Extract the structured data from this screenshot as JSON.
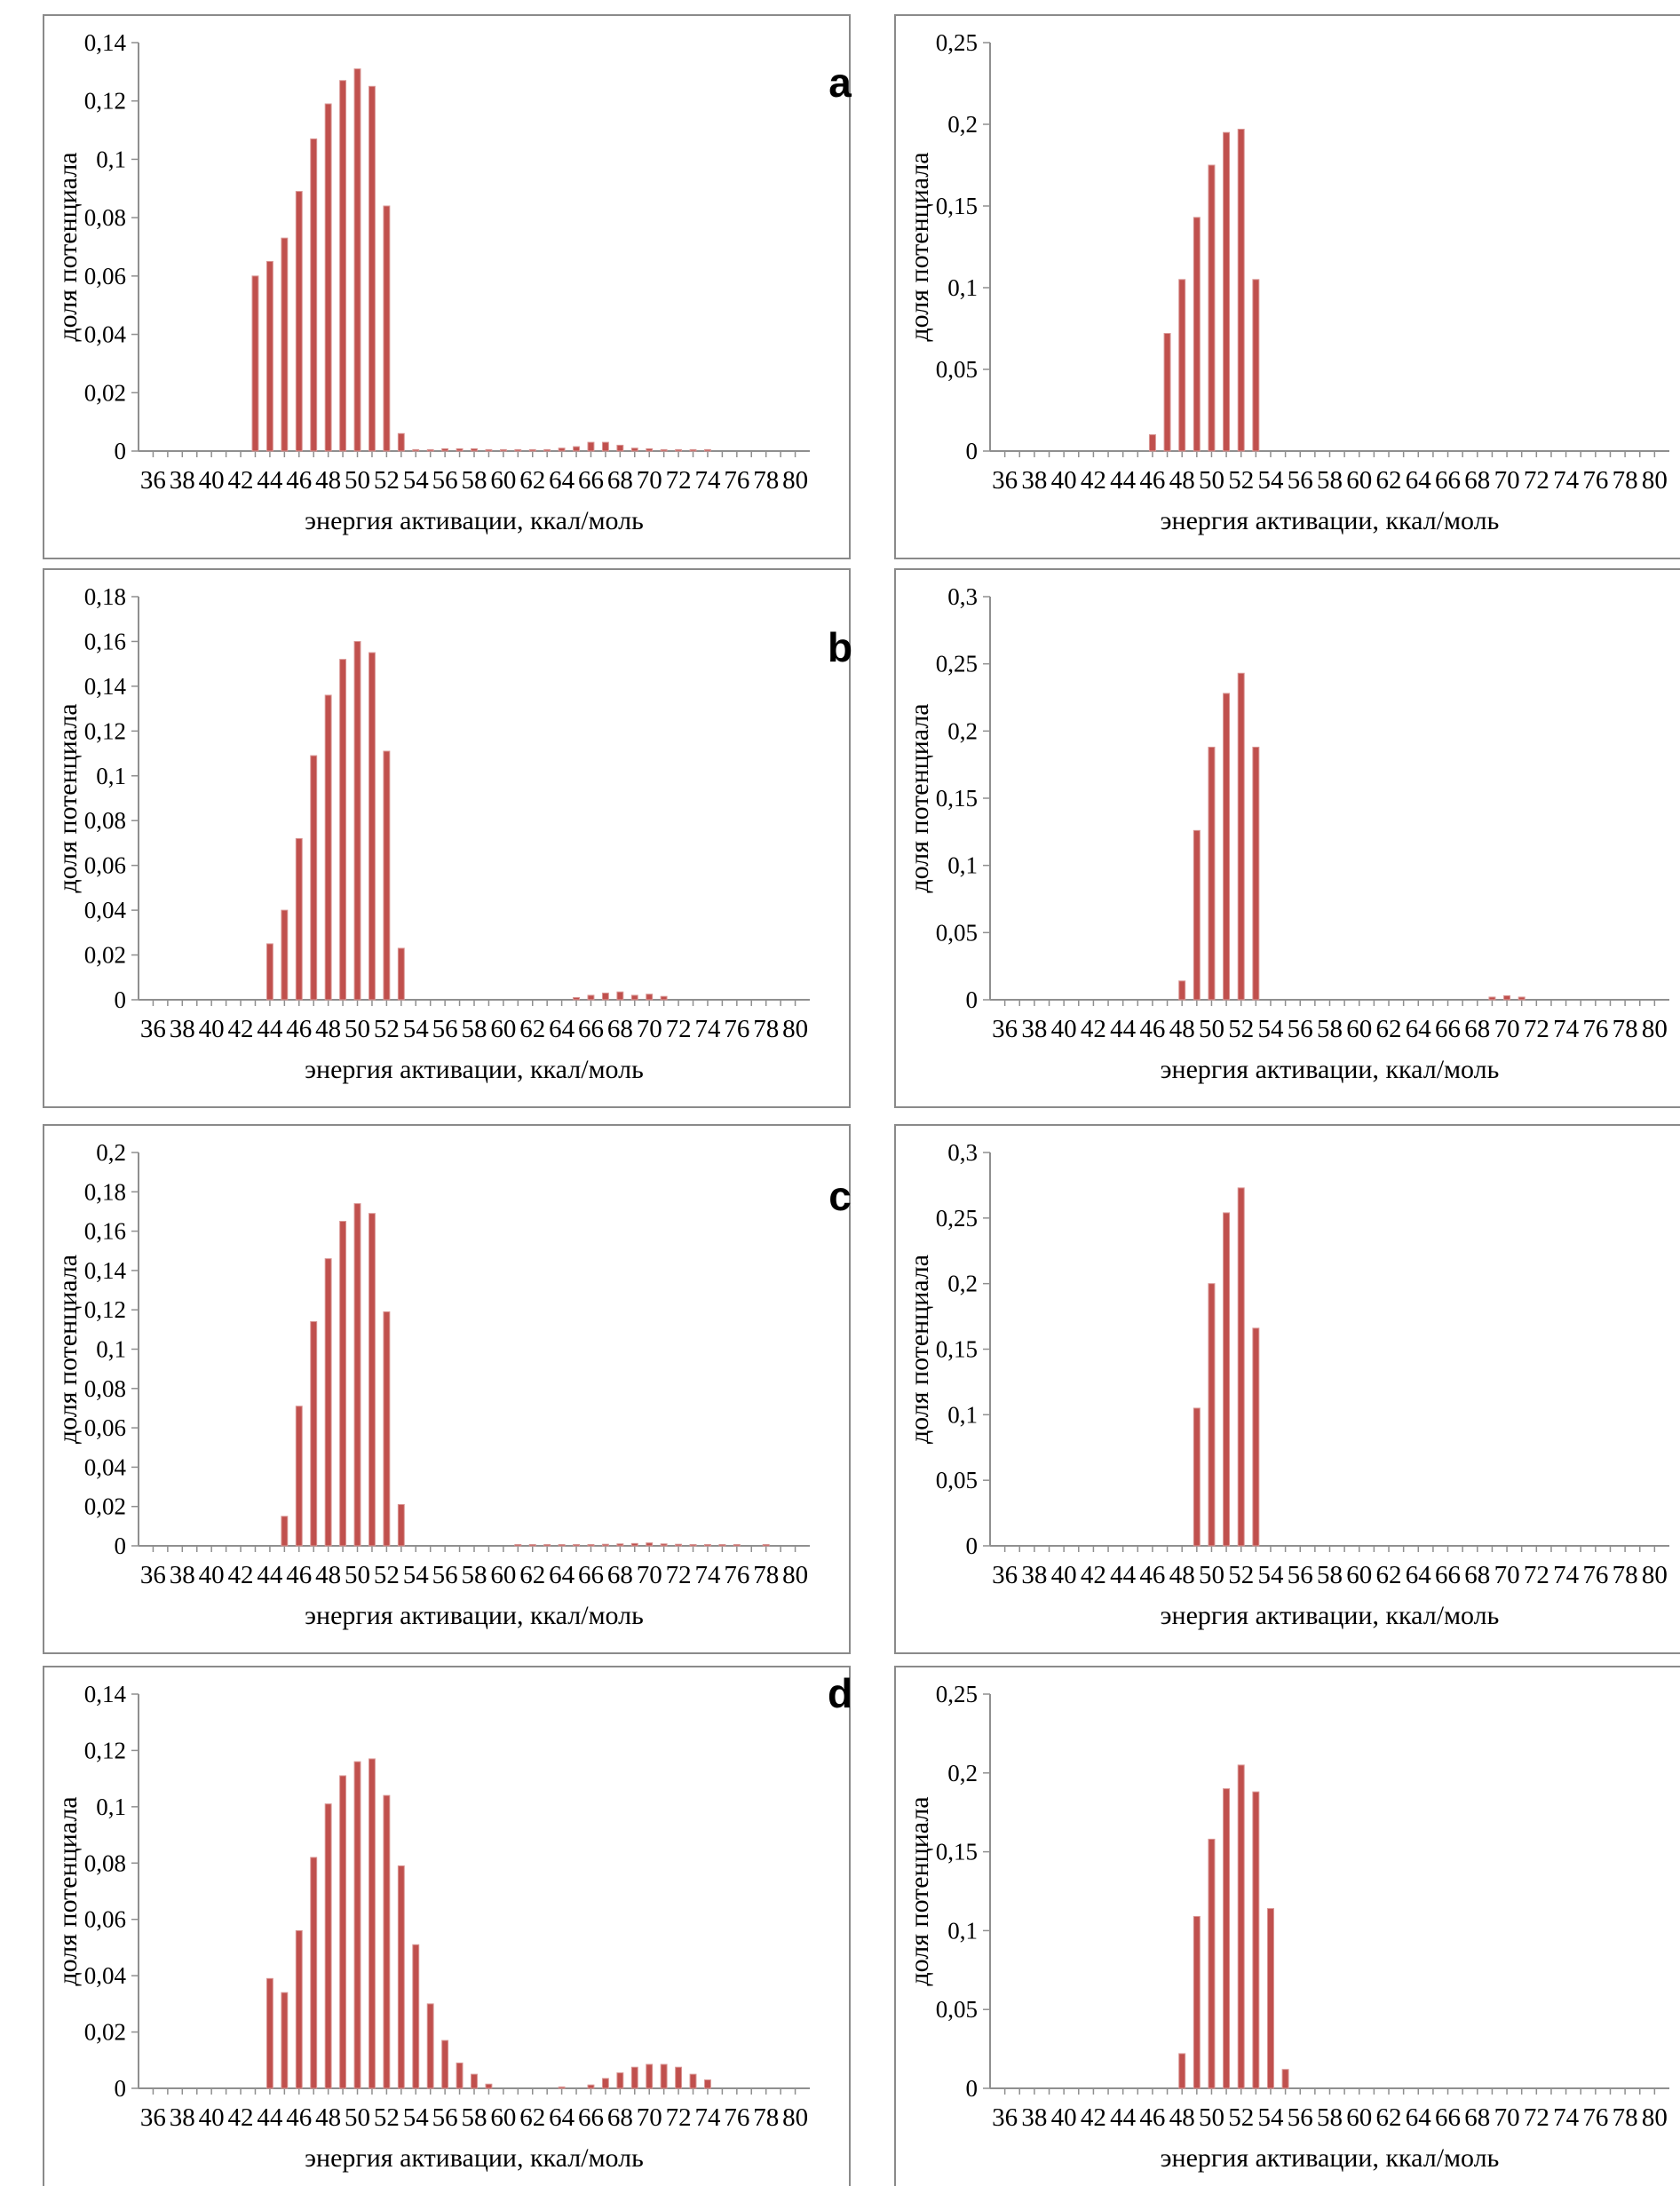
{
  "figure": {
    "row_labels": [
      "a",
      "b",
      "c",
      "d"
    ],
    "bar_color": "#c0504d",
    "bar_edge_color": "#d99694",
    "axis_color": "#8f8f8f",
    "text_color": "#000000"
  },
  "axis_labels": {
    "x": "энергия активации, ккал/моль",
    "y": "доля потенциала"
  },
  "chart_data": [
    {
      "id": "a-left",
      "row": "a",
      "type": "bar",
      "xlabel": "энергия активации, ккал/моль",
      "ylabel": "доля потенциала",
      "xlim": [
        35,
        81
      ],
      "xtick_start": 36,
      "xtick_end": 80,
      "xtick_label_step": 2,
      "ylim": [
        0,
        0.14
      ],
      "ytick_step": 0.02,
      "grid": false,
      "legend": null,
      "bars": [
        [
          43,
          0.06
        ],
        [
          44,
          0.065
        ],
        [
          45,
          0.073
        ],
        [
          46,
          0.089
        ],
        [
          47,
          0.107
        ],
        [
          48,
          0.119
        ],
        [
          49,
          0.127
        ],
        [
          50,
          0.131
        ],
        [
          51,
          0.125
        ],
        [
          52,
          0.084
        ],
        [
          53,
          0.006
        ],
        [
          54,
          0.0005
        ],
        [
          55,
          0.0005
        ],
        [
          56,
          0.0008
        ],
        [
          57,
          0.0008
        ],
        [
          58,
          0.0008
        ],
        [
          59,
          0.0005
        ],
        [
          60,
          0.0005
        ],
        [
          61,
          0.0005
        ],
        [
          62,
          0.0005
        ],
        [
          63,
          0.0005
        ],
        [
          64,
          0.001
        ],
        [
          65,
          0.0015
        ],
        [
          66,
          0.003
        ],
        [
          67,
          0.003
        ],
        [
          68,
          0.002
        ],
        [
          69,
          0.001
        ],
        [
          70,
          0.0008
        ],
        [
          71,
          0.0005
        ],
        [
          72,
          0.0005
        ],
        [
          73,
          0.0005
        ],
        [
          74,
          0.0005
        ]
      ]
    },
    {
      "id": "a-right",
      "row": "a",
      "type": "bar",
      "xlabel": "энергия активации, ккал/моль",
      "ylabel": "доля потенциала",
      "xlim": [
        35,
        81
      ],
      "xtick_start": 36,
      "xtick_end": 80,
      "xtick_label_step": 2,
      "ylim": [
        0,
        0.25
      ],
      "ytick_step": 0.05,
      "grid": false,
      "legend": null,
      "bars": [
        [
          46,
          0.01
        ],
        [
          47,
          0.072
        ],
        [
          48,
          0.105
        ],
        [
          49,
          0.143
        ],
        [
          50,
          0.175
        ],
        [
          51,
          0.195
        ],
        [
          52,
          0.197
        ],
        [
          53,
          0.105
        ]
      ]
    },
    {
      "id": "b-left",
      "row": "b",
      "type": "bar",
      "xlabel": "энергия активации, ккал/моль",
      "ylabel": "доля потенциала",
      "xlim": [
        35,
        81
      ],
      "xtick_start": 36,
      "xtick_end": 80,
      "xtick_label_step": 2,
      "ylim": [
        0,
        0.18
      ],
      "ytick_step": 0.02,
      "grid": false,
      "legend": null,
      "bars": [
        [
          44,
          0.025
        ],
        [
          45,
          0.04
        ],
        [
          46,
          0.072
        ],
        [
          47,
          0.109
        ],
        [
          48,
          0.136
        ],
        [
          49,
          0.152
        ],
        [
          50,
          0.16
        ],
        [
          51,
          0.155
        ],
        [
          52,
          0.111
        ],
        [
          53,
          0.023
        ],
        [
          65,
          0.001
        ],
        [
          66,
          0.002
        ],
        [
          67,
          0.003
        ],
        [
          68,
          0.0035
        ],
        [
          69,
          0.002
        ],
        [
          70,
          0.0025
        ],
        [
          71,
          0.0015
        ]
      ]
    },
    {
      "id": "b-right",
      "row": "b",
      "type": "bar",
      "xlabel": "энергия активации, ккал/моль",
      "ylabel": "доля потенциала",
      "xlim": [
        35,
        81
      ],
      "xtick_start": 36,
      "xtick_end": 80,
      "xtick_label_step": 2,
      "ylim": [
        0,
        0.3
      ],
      "ytick_step": 0.05,
      "grid": false,
      "legend": null,
      "bars": [
        [
          48,
          0.014
        ],
        [
          49,
          0.126
        ],
        [
          50,
          0.188
        ],
        [
          51,
          0.228
        ],
        [
          52,
          0.243
        ],
        [
          53,
          0.188
        ],
        [
          69,
          0.002
        ],
        [
          70,
          0.003
        ],
        [
          71,
          0.002
        ]
      ]
    },
    {
      "id": "c-left",
      "row": "c",
      "type": "bar",
      "xlabel": "энергия активации, ккал/моль",
      "ylabel": "доля потенциала",
      "xlim": [
        35,
        81
      ],
      "xtick_start": 36,
      "xtick_end": 80,
      "xtick_label_step": 2,
      "ylim": [
        0,
        0.2
      ],
      "ytick_step": 0.02,
      "grid": false,
      "legend": null,
      "bars": [
        [
          45,
          0.015
        ],
        [
          46,
          0.071
        ],
        [
          47,
          0.114
        ],
        [
          48,
          0.146
        ],
        [
          49,
          0.165
        ],
        [
          50,
          0.174
        ],
        [
          51,
          0.169
        ],
        [
          52,
          0.119
        ],
        [
          53,
          0.021
        ],
        [
          61,
          0.0005
        ],
        [
          62,
          0.0005
        ],
        [
          63,
          0.0005
        ],
        [
          64,
          0.0005
        ],
        [
          65,
          0.0005
        ],
        [
          66,
          0.0005
        ],
        [
          67,
          0.0008
        ],
        [
          68,
          0.001
        ],
        [
          69,
          0.0012
        ],
        [
          70,
          0.0015
        ],
        [
          71,
          0.001
        ],
        [
          72,
          0.0008
        ],
        [
          73,
          0.0005
        ],
        [
          74,
          0.0005
        ],
        [
          75,
          0.0005
        ],
        [
          76,
          0.0005
        ],
        [
          78,
          0.0005
        ]
      ]
    },
    {
      "id": "c-right",
      "row": "c",
      "type": "bar",
      "xlabel": "энергия активации, ккал/моль",
      "ylabel": "доля потенциала",
      "xlim": [
        35,
        81
      ],
      "xtick_start": 36,
      "xtick_end": 80,
      "xtick_label_step": 2,
      "ylim": [
        0,
        0.3
      ],
      "ytick_step": 0.05,
      "grid": false,
      "legend": null,
      "bars": [
        [
          49,
          0.105
        ],
        [
          50,
          0.2
        ],
        [
          51,
          0.254
        ],
        [
          52,
          0.273
        ],
        [
          53,
          0.166
        ]
      ]
    },
    {
      "id": "d-left",
      "row": "d",
      "type": "bar",
      "xlabel": "энергия активации, ккал/моль",
      "ylabel": "доля потенциала",
      "xlim": [
        35,
        81
      ],
      "xtick_start": 36,
      "xtick_end": 80,
      "xtick_label_step": 2,
      "ylim": [
        0,
        0.14
      ],
      "ytick_step": 0.02,
      "grid": false,
      "legend": null,
      "bars": [
        [
          44,
          0.039
        ],
        [
          45,
          0.034
        ],
        [
          46,
          0.056
        ],
        [
          47,
          0.082
        ],
        [
          48,
          0.101
        ],
        [
          49,
          0.111
        ],
        [
          50,
          0.116
        ],
        [
          51,
          0.117
        ],
        [
          52,
          0.104
        ],
        [
          53,
          0.079
        ],
        [
          54,
          0.051
        ],
        [
          55,
          0.03
        ],
        [
          56,
          0.017
        ],
        [
          57,
          0.009
        ],
        [
          58,
          0.005
        ],
        [
          59,
          0.0015
        ],
        [
          64,
          0.0005
        ],
        [
          66,
          0.0012
        ],
        [
          67,
          0.0035
        ],
        [
          68,
          0.0055
        ],
        [
          69,
          0.0075
        ],
        [
          70,
          0.0085
        ],
        [
          71,
          0.0085
        ],
        [
          72,
          0.0075
        ],
        [
          73,
          0.005
        ],
        [
          74,
          0.003
        ]
      ]
    },
    {
      "id": "d-right",
      "row": "d",
      "type": "bar",
      "xlabel": "энергия активации, ккал/моль",
      "ylabel": "доля потенциала",
      "xlim": [
        35,
        81
      ],
      "xtick_start": 36,
      "xtick_end": 80,
      "xtick_label_step": 2,
      "ylim": [
        0,
        0.25
      ],
      "ytick_step": 0.05,
      "grid": false,
      "legend": null,
      "bars": [
        [
          48,
          0.022
        ],
        [
          49,
          0.109
        ],
        [
          50,
          0.158
        ],
        [
          51,
          0.19
        ],
        [
          52,
          0.205
        ],
        [
          53,
          0.188
        ],
        [
          54,
          0.114
        ],
        [
          55,
          0.012
        ]
      ]
    }
  ]
}
